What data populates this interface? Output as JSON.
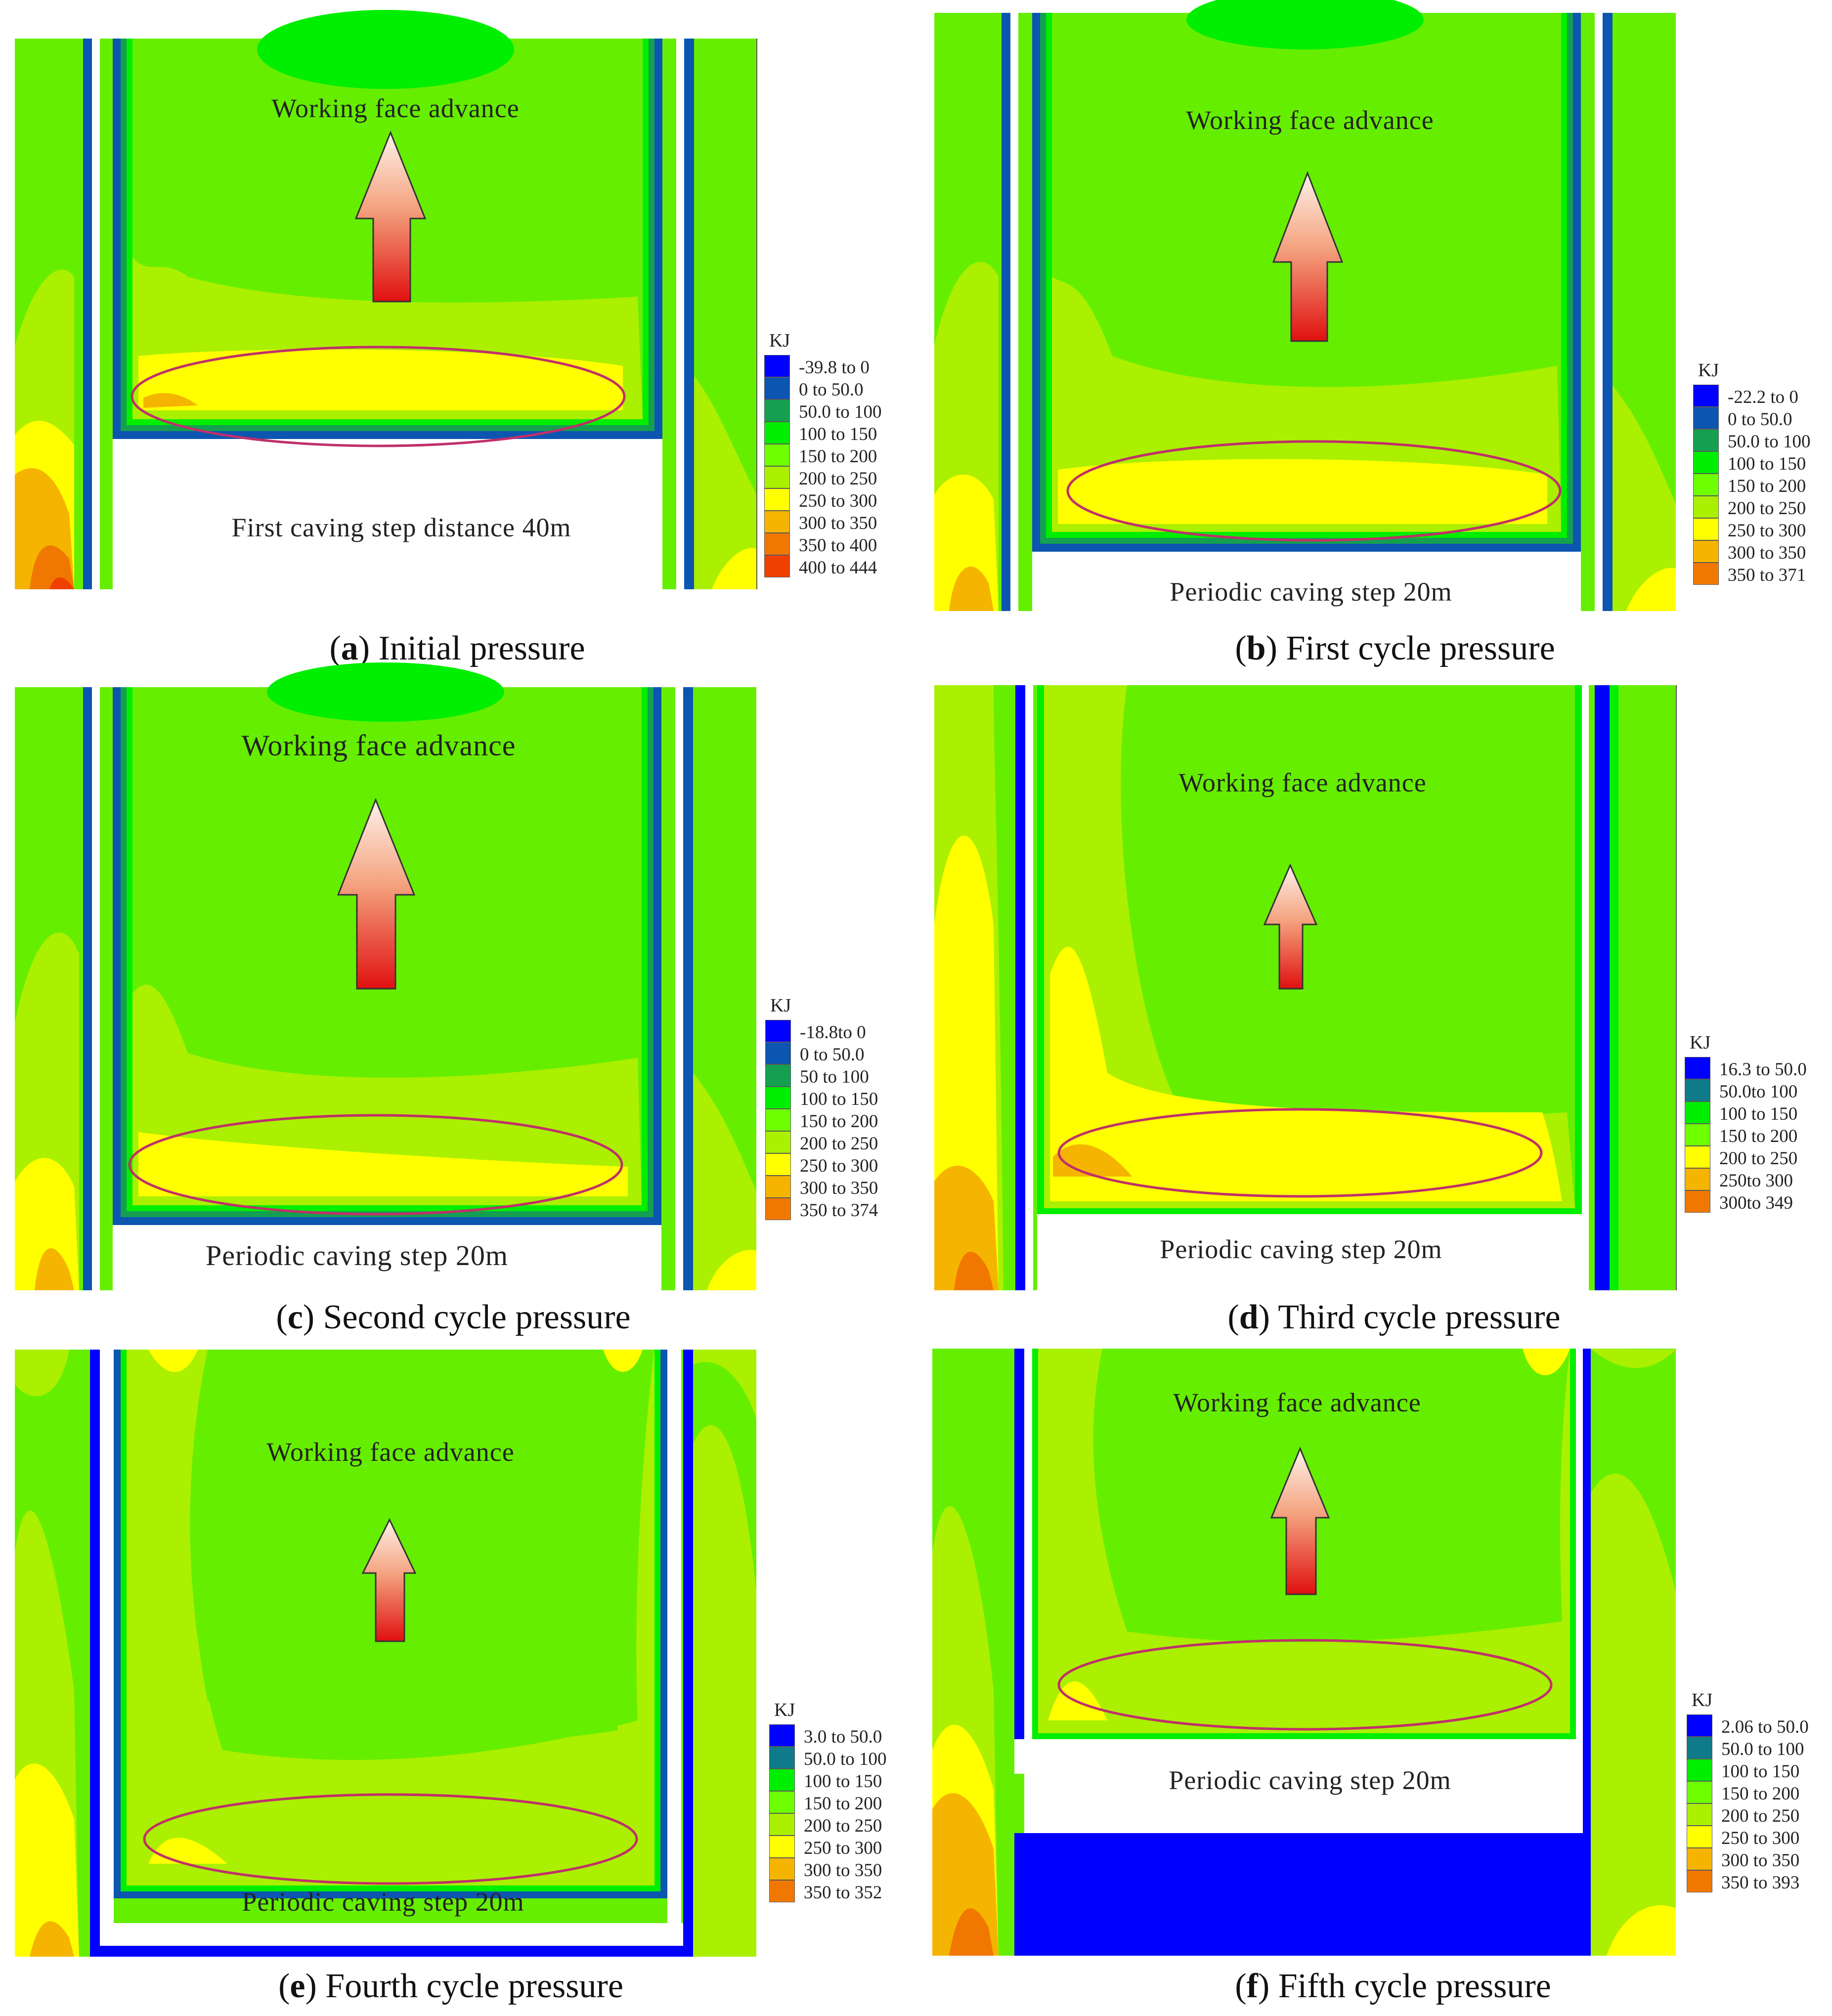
{
  "legend_unit": "KJ",
  "labels": {
    "advance": "Working face advance",
    "first_step": "First caving step distance 40m",
    "periodic_step": "Periodic caving step  20m"
  },
  "colors": {
    "c_neg": "#0000ff",
    "c0": "#0c55b0",
    "c50": "#14a050",
    "c100": "#00ee00",
    "c150": "#6eff00",
    "c200": "#aaf000",
    "c250": "#ffff00",
    "c300": "#f5b400",
    "c350": "#f07800",
    "c400": "#f04000",
    "ellipse": "#c0306a",
    "background_green": "#66ee00"
  },
  "panels": [
    {
      "letter": "a",
      "title": "Initial pressure",
      "legend": [
        "-39.8 to 0",
        "0 to 50.0",
        "50.0 to 100",
        "100 to 150",
        "150 to 200",
        "200 to 250",
        "250 to 300",
        "300 to 350",
        "350 to 400",
        "400 to 444"
      ]
    },
    {
      "letter": "b",
      "title": "First cycle pressure",
      "legend": [
        "-22.2 to 0",
        "0 to 50.0",
        "50.0 to 100",
        "100 to 150",
        "150 to 200",
        "200 to 250",
        "250 to 300",
        "300 to 350",
        "350 to 371"
      ]
    },
    {
      "letter": "c",
      "title": "Second cycle pressure",
      "legend": [
        "-18.8to 0",
        "0 to 50.0",
        "50 to 100",
        "100 to 150",
        "150 to 200",
        "200 to 250",
        "250 to 300",
        "300 to 350",
        "350 to 374"
      ]
    },
    {
      "letter": "d",
      "title": "Third cycle pressure",
      "legend": [
        "16.3 to 50.0",
        "50.0to 100",
        "100 to 150",
        "150 to 200",
        "200 to 250",
        "250to 300",
        "300to 349"
      ]
    },
    {
      "letter": "e",
      "title": "Fourth cycle pressure",
      "legend": [
        "3.0 to 50.0",
        "50.0 to 100",
        "100 to 150",
        "150 to 200",
        "200 to 250",
        "250 to 300",
        "300 to 350",
        "350 to 352"
      ]
    },
    {
      "letter": "f",
      "title": "Fifth cycle pressure",
      "legend": [
        "2.06 to 50.0",
        "50.0 to 100",
        "100 to 150",
        "150 to 200",
        "200 to 250",
        "250 to 300",
        "300 to 350",
        "350 to 393"
      ]
    }
  ]
}
